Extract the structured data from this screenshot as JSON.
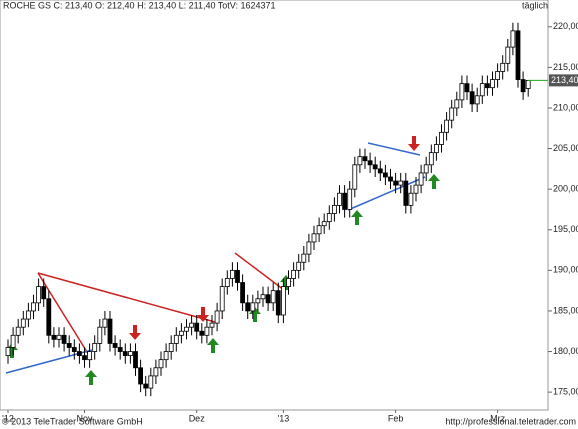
{
  "chart_data": {
    "type": "candlestick",
    "title": "ROCHE GS C: 213,40 O: 212,40 H: 213,40 L: 211,40 TotV: 1624371",
    "subtitle": "täglich",
    "footer_left": "© 2013 TeleTrader Software GmbH",
    "footer_right": "http://professional.teletrader.com",
    "last_price_label": "213,40",
    "categories": [
      "'12",
      null,
      null,
      null,
      null,
      null,
      null,
      null,
      null,
      null,
      null,
      null,
      null,
      null,
      null,
      "Nov",
      null,
      null,
      null,
      null,
      null,
      null,
      null,
      null,
      null,
      null,
      null,
      null,
      null,
      null,
      null,
      null,
      null,
      null,
      null,
      null,
      null,
      "Dez",
      null,
      null,
      null,
      null,
      null,
      null,
      null,
      null,
      null,
      null,
      null,
      null,
      null,
      null,
      null,
      null,
      "'13",
      null,
      null,
      null,
      null,
      null,
      null,
      null,
      null,
      null,
      null,
      null,
      null,
      null,
      null,
      null,
      null,
      null,
      null,
      null,
      null,
      null,
      "Feb",
      null,
      null,
      null,
      null,
      null,
      null,
      null,
      null,
      null,
      null,
      null,
      null,
      null,
      null,
      null,
      null,
      null,
      null,
      null,
      "Mrz",
      null,
      null,
      null,
      null,
      null,
      null
    ],
    "open": [
      179.5,
      180.5,
      182,
      183,
      184,
      185,
      186,
      188,
      186.5,
      182,
      181.5,
      182,
      181,
      180.5,
      180,
      179.5,
      179,
      180,
      181,
      183,
      184,
      181,
      180.5,
      180,
      179.5,
      180,
      178,
      176,
      175.5,
      177,
      178,
      179,
      180,
      181,
      182,
      182.5,
      183,
      183.5,
      182.5,
      182,
      183,
      183.5,
      185,
      188,
      189,
      190,
      188.5,
      186,
      185,
      186,
      186.5,
      187,
      186,
      187.5,
      184.5,
      188,
      189,
      190,
      191,
      192,
      193.5,
      194.5,
      195.5,
      196,
      197,
      198,
      199.5,
      197.5,
      200,
      203,
      204,
      203.5,
      203,
      202.5,
      202,
      201.5,
      201,
      200.5,
      201,
      198,
      199.5,
      200.5,
      202,
      203,
      204.5,
      205.5,
      207,
      208.5,
      210,
      211,
      213,
      212,
      210.5,
      211.5,
      213,
      212.5,
      213.5,
      214.5,
      215.5,
      217.5,
      219.5,
      213.5,
      212.4
    ],
    "high": [
      181.5,
      183,
      184,
      185,
      186,
      187,
      189,
      189,
      187.5,
      183,
      183,
      183,
      182,
      181.5,
      181,
      180.5,
      181,
      182,
      184,
      185,
      185,
      182,
      181.5,
      181,
      181,
      181,
      179,
      177,
      178,
      179,
      180,
      181,
      182,
      183,
      183.5,
      184,
      184.5,
      184.5,
      183.5,
      184,
      184.5,
      186,
      189,
      190,
      191,
      191,
      189.5,
      187,
      187,
      187.5,
      188,
      188,
      188.5,
      188.5,
      189,
      190,
      191,
      192,
      193,
      194.5,
      195.5,
      196.5,
      197,
      198,
      199,
      200.5,
      200.5,
      201,
      204,
      205,
      205,
      204.5,
      204,
      203.5,
      203,
      202.5,
      202,
      202,
      202,
      200.5,
      201.5,
      203,
      204,
      205.5,
      206.5,
      208,
      209.5,
      211,
      212,
      214,
      214,
      213,
      212.5,
      214,
      214,
      214.5,
      215.5,
      216.5,
      218.5,
      220.5,
      220.5,
      214.5,
      213.4
    ],
    "low": [
      178.5,
      179.5,
      181,
      182,
      183,
      184,
      185,
      185.5,
      181,
      180.5,
      180.5,
      180,
      179.5,
      179,
      178.5,
      178,
      178,
      179,
      180,
      182,
      180,
      179.5,
      179,
      178.5,
      178.5,
      177,
      175,
      174.5,
      174.5,
      176,
      177,
      178,
      179,
      180,
      181,
      181.5,
      182,
      181.5,
      181,
      181,
      182,
      182.5,
      184,
      187,
      188,
      187.5,
      185,
      184,
      184,
      185,
      185.5,
      185,
      185,
      183.5,
      183.5,
      187,
      188,
      189,
      190,
      191,
      192.5,
      193.5,
      194.5,
      195,
      196,
      197,
      196.5,
      196.5,
      199,
      202,
      202.5,
      202,
      201.5,
      201,
      200.5,
      200,
      199.5,
      199.5,
      197,
      197,
      198.5,
      199.5,
      201,
      202,
      203.5,
      204.5,
      206,
      207.5,
      209,
      210,
      211,
      209.5,
      209.5,
      210.5,
      211.5,
      211.5,
      212.5,
      213.5,
      214.5,
      216.5,
      212.5,
      211,
      211.4
    ],
    "close": [
      180.5,
      182,
      183,
      184,
      185,
      186,
      188,
      186.5,
      182,
      181.5,
      182,
      181,
      180.5,
      180,
      179.5,
      179,
      180,
      181,
      183,
      184,
      181,
      180.5,
      180,
      179.5,
      180,
      178,
      176,
      175.5,
      177,
      178,
      179,
      180,
      181,
      182,
      182.5,
      183,
      183.5,
      182.5,
      182,
      183,
      183.5,
      185,
      188,
      189,
      190,
      188.5,
      186,
      185,
      186,
      186.5,
      187,
      186,
      187.5,
      184.5,
      188,
      189,
      190,
      191,
      192,
      193.5,
      194.5,
      195.5,
      196,
      197,
      198,
      199.5,
      197.5,
      200,
      203,
      204,
      203.5,
      203,
      202.5,
      202,
      201.5,
      201,
      200.5,
      201,
      198,
      199.5,
      200.5,
      202,
      203,
      204.5,
      205.5,
      207,
      208.5,
      210,
      211,
      213,
      212,
      210.5,
      211.5,
      213,
      212.5,
      213.5,
      214.5,
      215.5,
      217.5,
      219.5,
      213.5,
      212,
      213.4
    ],
    "up_color": "#ffffff",
    "down_color": "#000000",
    "ylim": [
      172.8,
      223.3
    ],
    "yticks": [
      {
        "value": 175,
        "label": "175,00"
      },
      {
        "value": 180,
        "label": "180,00"
      },
      {
        "value": 185,
        "label": "185,00"
      },
      {
        "value": 190,
        "label": "190,00"
      },
      {
        "value": 195,
        "label": "195,00"
      },
      {
        "value": 200,
        "label": "200,00"
      },
      {
        "value": 205,
        "label": "205,00"
      },
      {
        "value": 210,
        "label": "210,00"
      },
      {
        "value": 215,
        "label": "215,00"
      },
      {
        "value": 220,
        "label": "220,00"
      }
    ],
    "grid": false
  }
}
